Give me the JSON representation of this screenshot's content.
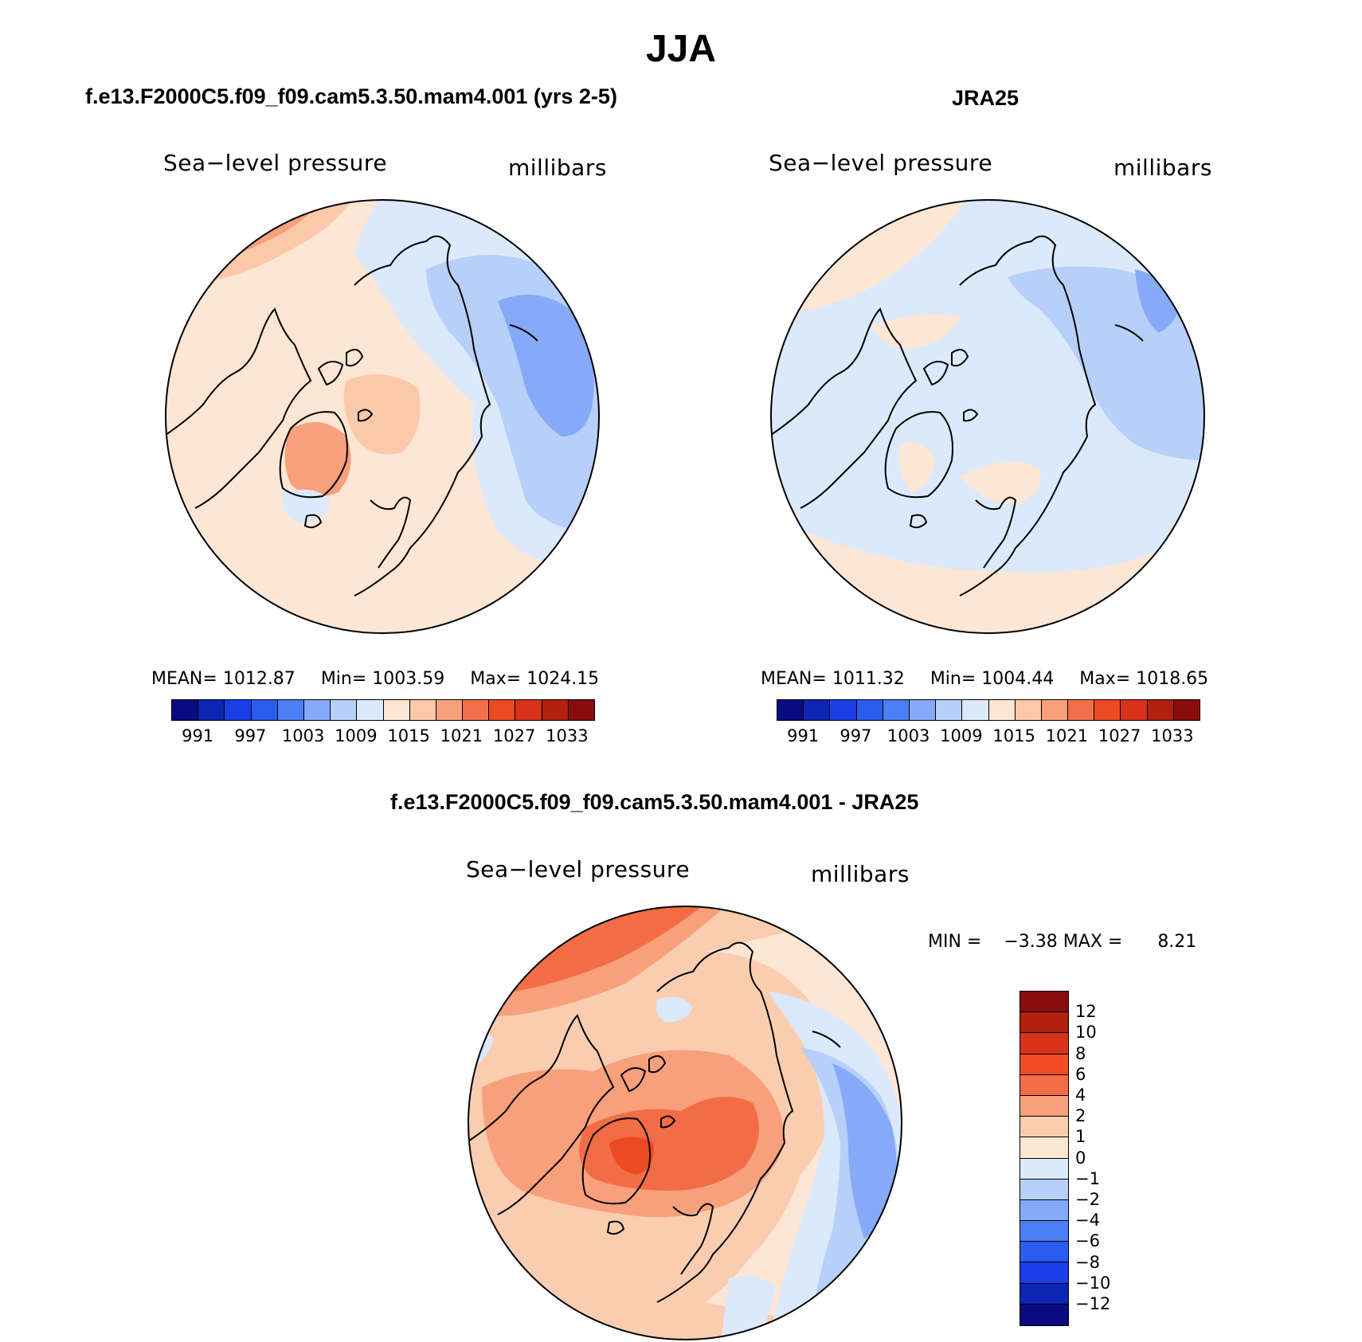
{
  "figure_title": "JJA",
  "panels": [
    {
      "title": "f.e13.F2000C5.f09_f09.cam5.3.50.mam4.001 (yrs 2-5)",
      "variable": "Sea−level pressure",
      "units": "millibars",
      "stats": {
        "mean_label": "MEAN=",
        "mean": "1012.87",
        "min_label": "Min=",
        "min": "1003.59",
        "max_label": "Max=",
        "max": "1024.15"
      }
    },
    {
      "title": "JRA25",
      "variable": "Sea−level pressure",
      "units": "millibars",
      "stats": {
        "mean_label": "MEAN=",
        "mean": "1011.32",
        "min_label": "Min=",
        "min": "1004.44",
        "max_label": "Max=",
        "max": "1018.65"
      }
    },
    {
      "title": "f.e13.F2000C5.f09_f09.cam5.3.50.mam4.001 - JRA25",
      "variable": "Sea−level pressure",
      "units": "millibars",
      "stats": {
        "min_label": "MIN =",
        "min": "−3.38",
        "max_label": "MAX =",
        "max": "8.21"
      }
    }
  ],
  "colorbar_abs": {
    "colors": [
      "#0a0a82",
      "#0e24b4",
      "#1a3fe6",
      "#2b5cf2",
      "#4c7ff5",
      "#86aaf7",
      "#b7cff9",
      "#dbe9fb",
      "#fde6d4",
      "#fbc8aa",
      "#f7a07b",
      "#f36f4a",
      "#ec4a22",
      "#d8321b",
      "#b2200f",
      "#8a0c0c"
    ],
    "tick_labels": [
      "991",
      "997",
      "1003",
      "1009",
      "1015",
      "1021",
      "1027",
      "1033"
    ]
  },
  "colorbar_diff": {
    "colors": [
      "#8a0c0c",
      "#b2200f",
      "#d8321b",
      "#f04d26",
      "#f26d45",
      "#f7a07b",
      "#fbcdb0",
      "#fde6d4",
      "#dbe9fb",
      "#b7cff9",
      "#86aaf7",
      "#4c7ff5",
      "#2b5cf2",
      "#1a3fe6",
      "#0e24b4",
      "#0a0a82"
    ],
    "tick_labels": [
      "12",
      "10",
      "8",
      "6",
      "4",
      "2",
      "1",
      "0",
      "−1",
      "−2",
      "−4",
      "−6",
      "−8",
      "−10",
      "−12"
    ]
  },
  "map_fills": {
    "model": {
      "base": "#fde6d4",
      "high": "#fbc8aa",
      "higher": "#f7a07b",
      "low": "#dbe9fb",
      "lower": "#b7cff9",
      "lowest": "#86aaf7"
    },
    "obs": {
      "base": "#dbe9fb",
      "high": "#fde6d4",
      "higher": "#fbc8aa",
      "low": "#b7cff9",
      "lower": "#86aaf7"
    },
    "diff": {
      "base": "#fbcdb0",
      "high": "#f7a07b",
      "higher": "#f26d45",
      "highest": "#ec4a22",
      "neutral": "#fde6d4",
      "low": "#dbe9fb",
      "lower": "#b7cff9",
      "lowest": "#86aaf7"
    }
  }
}
